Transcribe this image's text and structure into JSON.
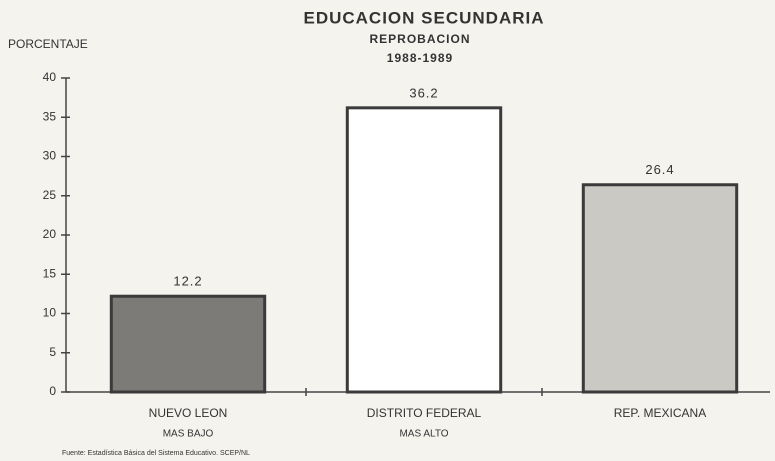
{
  "chart_data": {
    "type": "bar",
    "title": "EDUCACION  SECUNDARIA",
    "subtitle": "REPROBACION",
    "period": "1988-1989",
    "y_label": "PORCENTAJE",
    "categories": [
      "NUEVO LEON",
      "DISTRITO FEDERAL",
      "REP. MEXICANA"
    ],
    "category_notes": [
      "MAS BAJO",
      "MAS ALTO",
      null
    ],
    "values": [
      12.2,
      36.2,
      26.4
    ],
    "colors": [
      "#7d7b78",
      "#ffffff",
      "#cbc9c4"
    ],
    "ylim": [
      0,
      40
    ],
    "yticks": [
      0,
      5,
      10,
      15,
      20,
      25,
      30,
      35,
      40
    ],
    "grid": false,
    "source": "Fuente: Estadística Básica del Sistema Educativo. SCEP/NL"
  }
}
